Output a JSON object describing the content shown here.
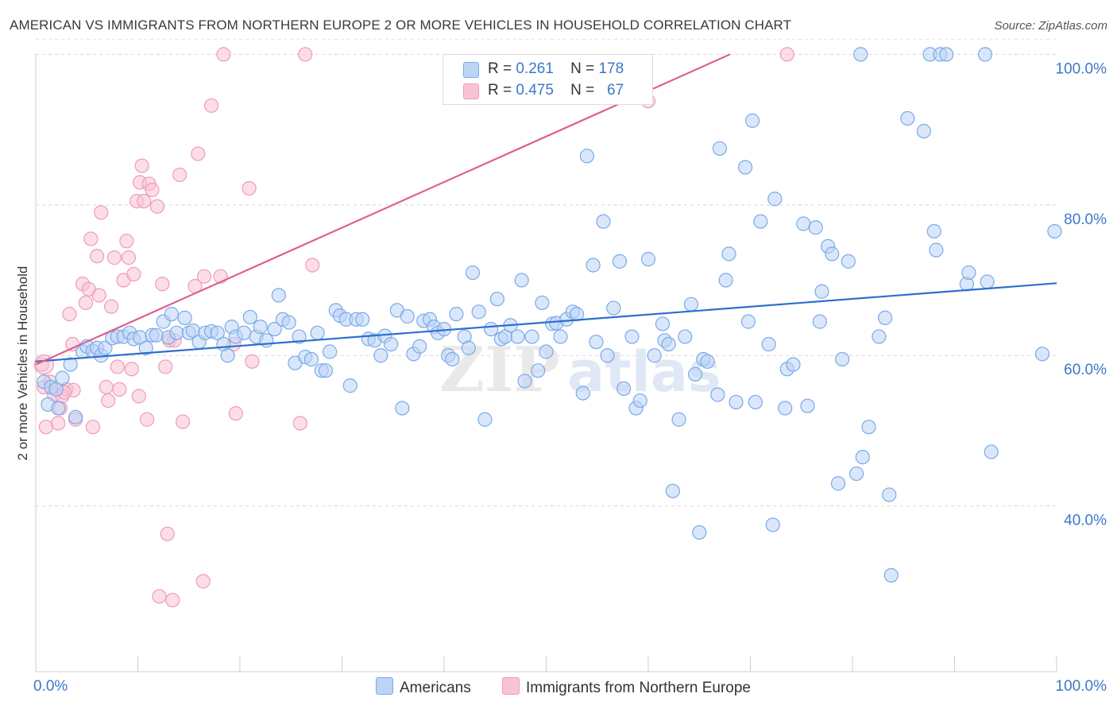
{
  "chart_data": {
    "type": "scatter",
    "title": "AMERICAN VS IMMIGRANTS FROM NORTHERN EUROPE 2 OR MORE VEHICLES IN HOUSEHOLD CORRELATION CHART",
    "source": "Source: ZipAtlas.com",
    "ylabel": "2 or more Vehicles in Household",
    "xlabel": "",
    "xlim": [
      0,
      100
    ],
    "ylim": [
      18,
      103
    ],
    "x_tick_labels": [
      "0.0%",
      "100.0%"
    ],
    "y_ticks": [
      {
        "value": 40,
        "label": "40.0%"
      },
      {
        "value": 60,
        "label": "60.0%"
      },
      {
        "value": 80,
        "label": "80.0%"
      },
      {
        "value": 100,
        "label": "100.0%"
      }
    ],
    "grid": true,
    "watermark": "ZIPatlas",
    "legend": {
      "position": "top-center",
      "entries": [
        {
          "r_label": "R =",
          "r_value": "0.261",
          "n_label": "N =",
          "n_value": "178"
        },
        {
          "r_label": "R =",
          "r_value": "0.475",
          "n_label": "N =",
          "n_value": "67"
        }
      ]
    },
    "series": [
      {
        "name": "Americans",
        "color": "#7aaae8",
        "fill": "#bcd4f5",
        "line_color": "#2d6fcd",
        "trend": {
          "x0": 0,
          "y0": 59.2,
          "x1": 100,
          "y1": 69.6
        },
        "points": [
          [
            0.8,
            56.5
          ],
          [
            1.2,
            53.5
          ],
          [
            1.5,
            55.8
          ],
          [
            2,
            55.5
          ],
          [
            2.2,
            53
          ],
          [
            2.6,
            57
          ],
          [
            3.4,
            58.8
          ],
          [
            3.9,
            51.8
          ],
          [
            4.6,
            60.5
          ],
          [
            5.0,
            61.2
          ],
          [
            5.6,
            60.6
          ],
          [
            6.0,
            61.0
          ],
          [
            6.4,
            60.0
          ],
          [
            6.8,
            61.0
          ],
          [
            7.5,
            62.3
          ],
          [
            8.0,
            62.5
          ],
          [
            8.6,
            62.5
          ],
          [
            9.2,
            63.0
          ],
          [
            9.6,
            62.2
          ],
          [
            10.2,
            62.4
          ],
          [
            10.8,
            61.0
          ],
          [
            11.4,
            62.7
          ],
          [
            11.8,
            62.7
          ],
          [
            12.5,
            64.5
          ],
          [
            13.0,
            62.4
          ],
          [
            13.3,
            65.5
          ],
          [
            13.8,
            63.0
          ],
          [
            14.6,
            65.0
          ],
          [
            15.0,
            63.0
          ],
          [
            15.4,
            63.3
          ],
          [
            16.0,
            61.8
          ],
          [
            16.6,
            63.0
          ],
          [
            17.2,
            63.2
          ],
          [
            17.8,
            63.0
          ],
          [
            18.4,
            61.5
          ],
          [
            18.8,
            60.0
          ],
          [
            19.2,
            63.8
          ],
          [
            19.6,
            62.5
          ],
          [
            20.4,
            63.0
          ],
          [
            21.0,
            65.1
          ],
          [
            21.6,
            62.5
          ],
          [
            22.0,
            63.8
          ],
          [
            22.6,
            62.0
          ],
          [
            23.4,
            63.5
          ],
          [
            23.8,
            68.0
          ],
          [
            24.2,
            64.8
          ],
          [
            24.8,
            64.4
          ],
          [
            25.4,
            59.0
          ],
          [
            25.8,
            62.5
          ],
          [
            26.4,
            59.8
          ],
          [
            27.0,
            59.5
          ],
          [
            27.6,
            63.0
          ],
          [
            28.0,
            58.0
          ],
          [
            28.4,
            58.0
          ],
          [
            28.8,
            60.5
          ],
          [
            29.4,
            66.0
          ],
          [
            29.8,
            65.3
          ],
          [
            30.4,
            64.8
          ],
          [
            30.8,
            56.0
          ],
          [
            31.4,
            64.8
          ],
          [
            32.0,
            64.8
          ],
          [
            32.6,
            62.2
          ],
          [
            33.2,
            62.0
          ],
          [
            33.8,
            60.0
          ],
          [
            34.2,
            62.6
          ],
          [
            34.8,
            61.5
          ],
          [
            35.4,
            66.0
          ],
          [
            35.9,
            53.0
          ],
          [
            36.4,
            65.2
          ],
          [
            37.0,
            60.2
          ],
          [
            37.6,
            61.2
          ],
          [
            38.0,
            64.6
          ],
          [
            38.6,
            64.8
          ],
          [
            39.0,
            63.8
          ],
          [
            39.4,
            63.0
          ],
          [
            40.0,
            63.5
          ],
          [
            40.4,
            60.0
          ],
          [
            40.8,
            59.5
          ],
          [
            41.2,
            65.5
          ],
          [
            42.0,
            62.5
          ],
          [
            42.4,
            61.0
          ],
          [
            42.8,
            71.0
          ],
          [
            43.4,
            65.8
          ],
          [
            44.0,
            51.5
          ],
          [
            44.6,
            63.5
          ],
          [
            45.2,
            67.5
          ],
          [
            45.6,
            62.2
          ],
          [
            46.0,
            62.5
          ],
          [
            46.5,
            64.0
          ],
          [
            47.2,
            62.5
          ],
          [
            47.6,
            70.0
          ],
          [
            47.9,
            56.6
          ],
          [
            48.6,
            62.5
          ],
          [
            49.2,
            58.0
          ],
          [
            49.6,
            67.0
          ],
          [
            50.0,
            60.5
          ],
          [
            50.6,
            64.2
          ],
          [
            51.0,
            64.3
          ],
          [
            51.4,
            62.5
          ],
          [
            52.0,
            64.8
          ],
          [
            52.6,
            65.8
          ],
          [
            53.0,
            65.5
          ],
          [
            53.6,
            55.0
          ],
          [
            54.0,
            86.5
          ],
          [
            54.6,
            72.0
          ],
          [
            54.9,
            61.8
          ],
          [
            55.6,
            77.8
          ],
          [
            56.0,
            60.0
          ],
          [
            56.6,
            66.3
          ],
          [
            57.2,
            72.5
          ],
          [
            57.6,
            55.6
          ],
          [
            58.4,
            62.5
          ],
          [
            58.8,
            53.0
          ],
          [
            59.2,
            54.0
          ],
          [
            60.0,
            72.8
          ],
          [
            60.6,
            60.0
          ],
          [
            61.4,
            64.2
          ],
          [
            61.6,
            62.0
          ],
          [
            62.0,
            61.5
          ],
          [
            62.4,
            42.0
          ],
          [
            63.0,
            51.5
          ],
          [
            63.6,
            62.5
          ],
          [
            64.2,
            66.8
          ],
          [
            64.6,
            57.5
          ],
          [
            65.0,
            36.5
          ],
          [
            65.4,
            59.5
          ],
          [
            65.8,
            59.2
          ],
          [
            66.8,
            54.8
          ],
          [
            67.0,
            87.5
          ],
          [
            67.6,
            70.0
          ],
          [
            67.9,
            73.5
          ],
          [
            68.6,
            53.8
          ],
          [
            69.5,
            85.0
          ],
          [
            69.8,
            64.5
          ],
          [
            70.2,
            91.2
          ],
          [
            70.5,
            53.8
          ],
          [
            71.0,
            77.8
          ],
          [
            71.8,
            61.5
          ],
          [
            72.2,
            37.5
          ],
          [
            72.4,
            80.8
          ],
          [
            73.4,
            53.0
          ],
          [
            73.6,
            58.2
          ],
          [
            74.2,
            58.8
          ],
          [
            75.2,
            77.5
          ],
          [
            75.6,
            53.3
          ],
          [
            76.4,
            77.0
          ],
          [
            76.8,
            64.5
          ],
          [
            77.0,
            68.5
          ],
          [
            77.6,
            74.5
          ],
          [
            78.0,
            73.5
          ],
          [
            78.6,
            43.0
          ],
          [
            79.0,
            59.5
          ],
          [
            79.6,
            72.5
          ],
          [
            80.4,
            44.3
          ],
          [
            80.8,
            100
          ],
          [
            81.0,
            46.5
          ],
          [
            81.6,
            50.5
          ],
          [
            82.6,
            62.5
          ],
          [
            83.2,
            65.0
          ],
          [
            83.6,
            41.5
          ],
          [
            83.8,
            30.8
          ],
          [
            85.4,
            91.5
          ],
          [
            87.0,
            89.8
          ],
          [
            87.6,
            100
          ],
          [
            88.0,
            76.5
          ],
          [
            88.2,
            74.0
          ],
          [
            88.6,
            100
          ],
          [
            89.2,
            100
          ],
          [
            91.2,
            69.5
          ],
          [
            91.4,
            71.0
          ],
          [
            93.0,
            100
          ],
          [
            93.2,
            69.8
          ],
          [
            93.6,
            47.2
          ],
          [
            98.6,
            60.2
          ],
          [
            99.8,
            76.5
          ]
        ]
      },
      {
        "name": "Immigrants from Northern Europe",
        "color": "#f09ab8",
        "fill": "#f8c3d6",
        "line_color": "#e0608d",
        "trend": {
          "x0": 0,
          "y0": 58.8,
          "x1": 68.0,
          "y1": 100
        }
      }
    ]
  },
  "pink_points": [
    [
      0.6,
      58.8
    ],
    [
      0.8,
      55.8
    ],
    [
      1.0,
      50.5
    ],
    [
      1.4,
      56.5
    ],
    [
      1.8,
      54.8
    ],
    [
      2.2,
      51.0
    ],
    [
      2.4,
      53.0
    ],
    [
      2.6,
      54.6
    ],
    [
      3.0,
      55.5
    ],
    [
      3.3,
      65.5
    ],
    [
      3.6,
      61.5
    ],
    [
      3.9,
      51.5
    ],
    [
      4.6,
      69.5
    ],
    [
      4.9,
      67.0
    ],
    [
      5.2,
      68.8
    ],
    [
      5.4,
      75.5
    ],
    [
      5.6,
      50.5
    ],
    [
      6.0,
      73.2
    ],
    [
      6.2,
      68.0
    ],
    [
      6.4,
      79.0
    ],
    [
      6.9,
      55.8
    ],
    [
      7.1,
      54.0
    ],
    [
      7.4,
      66.5
    ],
    [
      7.7,
      73.0
    ],
    [
      8.0,
      58.5
    ],
    [
      8.2,
      55.5
    ],
    [
      8.6,
      70.0
    ],
    [
      8.9,
      75.2
    ],
    [
      9.1,
      73.0
    ],
    [
      9.4,
      58.2
    ],
    [
      9.6,
      70.8
    ],
    [
      9.9,
      80.5
    ],
    [
      10.2,
      83.0
    ],
    [
      10.4,
      85.2
    ],
    [
      10.6,
      80.5
    ],
    [
      10.9,
      51.5
    ],
    [
      11.1,
      82.8
    ],
    [
      11.4,
      82.0
    ],
    [
      11.9,
      79.8
    ],
    [
      12.4,
      69.5
    ],
    [
      12.7,
      58.5
    ],
    [
      12.9,
      36.3
    ],
    [
      13.1,
      62.0
    ],
    [
      13.6,
      62.0
    ],
    [
      14.1,
      84.0
    ],
    [
      14.4,
      51.2
    ],
    [
      15.6,
      69.2
    ],
    [
      15.9,
      86.8
    ],
    [
      16.5,
      70.5
    ],
    [
      17.2,
      93.2
    ],
    [
      18.1,
      70.5
    ],
    [
      18.4,
      100
    ],
    [
      19.4,
      61.5
    ],
    [
      19.6,
      52.3
    ],
    [
      20.9,
      82.2
    ],
    [
      21.2,
      59.2
    ],
    [
      25.9,
      51.0
    ],
    [
      26.4,
      100
    ],
    [
      27.1,
      72.0
    ],
    [
      12.1,
      28.0
    ],
    [
      13.4,
      27.5
    ],
    [
      16.4,
      30.0
    ],
    [
      10.1,
      54.6
    ],
    [
      3.7,
      55.4
    ],
    [
      60.0,
      93.8
    ],
    [
      73.6,
      100
    ],
    [
      2.8,
      55.1
    ]
  ]
}
